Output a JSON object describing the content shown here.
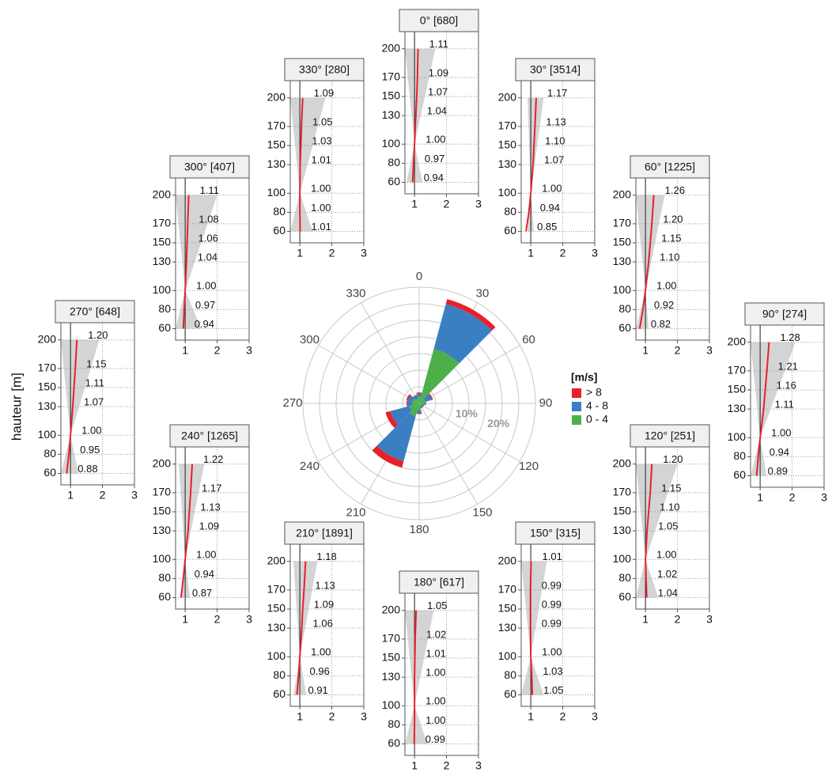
{
  "chart_data": [
    {
      "type": "windrose",
      "categories": [
        "0",
        "30",
        "60",
        "90",
        "120",
        "150",
        "180",
        "210",
        "240",
        "270",
        "300",
        "330"
      ],
      "angles": [
        0,
        30,
        60,
        90,
        120,
        150,
        180,
        210,
        240,
        270,
        300,
        330
      ],
      "legend_title": "[m/s]",
      "series": [
        {
          "name": "> 8",
          "color": "#e8202a",
          "values": [
            0.3,
            1.5,
            0.3,
            0.1,
            0.1,
            0.1,
            0.2,
            2,
            1.5,
            0.3,
            0.5,
            0.2
          ]
        },
        {
          "name": "4 - 8",
          "color": "#3a7fc1",
          "values": [
            1,
            14,
            2,
            0.5,
            0.5,
            0.5,
            1,
            14,
            6,
            1.5,
            1.5,
            1
          ]
        },
        {
          "name": "0 - 4",
          "color": "#4daf4a",
          "values": [
            2,
            17,
            2,
            1.5,
            1,
            1,
            2,
            4,
            3,
            2,
            2,
            1.5
          ]
        }
      ],
      "rlim": [
        0,
        35
      ],
      "rgrid": [
        5,
        10,
        15,
        20,
        25,
        30,
        35
      ],
      "rticks": [
        {
          "value": 10,
          "label": "10%"
        },
        {
          "value": 20,
          "label": "20%"
        }
      ]
    },
    {
      "type": "profile",
      "title": "0° [680]",
      "y": [
        60,
        80,
        100,
        130,
        150,
        170,
        200
      ],
      "values": [
        0.94,
        0.97,
        1,
        1.04,
        1.07,
        1.09,
        1.11
      ],
      "value_labels": [
        "0.94",
        "0.97",
        "1.00",
        "1.04",
        "1.07",
        "1.09",
        "1.11"
      ],
      "band": {
        "y": [
          60,
          100,
          200
        ],
        "low": [
          0.75,
          1,
          0.7
        ],
        "high": [
          1.25,
          1,
          1.65
        ]
      },
      "reference": 1,
      "color": "#e8202a",
      "xlim": [
        0.7,
        3
      ],
      "xticks": [
        1,
        2,
        3
      ],
      "ylim": [
        48,
        218
      ],
      "yticks": [
        60,
        80,
        100,
        130,
        150,
        170,
        200
      ],
      "grid": true
    },
    {
      "type": "profile",
      "title": "30° [3514]",
      "y": [
        60,
        80,
        100,
        130,
        150,
        170,
        200
      ],
      "values": [
        0.85,
        0.94,
        1,
        1.07,
        1.1,
        1.13,
        1.17
      ],
      "value_labels": [
        "0.85",
        "0.94",
        "1.00",
        "1.07",
        "1.10",
        "1.13",
        "1.17"
      ],
      "band": {
        "y": [
          60,
          100,
          200
        ],
        "low": [
          0.9,
          1,
          0.9
        ],
        "high": [
          1.1,
          1,
          1.4
        ]
      },
      "reference": 1,
      "color": "#e8202a",
      "xlim": [
        0.7,
        3
      ],
      "xticks": [
        1,
        2,
        3
      ],
      "ylim": [
        48,
        218
      ],
      "yticks": [
        60,
        80,
        100,
        130,
        150,
        170,
        200
      ],
      "grid": true
    },
    {
      "type": "profile",
      "title": "60° [1225]",
      "y": [
        60,
        80,
        100,
        130,
        150,
        170,
        200
      ],
      "values": [
        0.82,
        0.92,
        1,
        1.1,
        1.15,
        1.2,
        1.26
      ],
      "value_labels": [
        "0.82",
        "0.92",
        "1.00",
        "1.10",
        "1.15",
        "1.20",
        "1.26"
      ],
      "band": {
        "y": [
          60,
          100,
          200
        ],
        "low": [
          0.7,
          1,
          0.7
        ],
        "high": [
          1.1,
          1,
          1.6
        ]
      },
      "reference": 1,
      "color": "#e8202a",
      "xlim": [
        0.7,
        3
      ],
      "xticks": [
        1,
        2,
        3
      ],
      "ylim": [
        48,
        218
      ],
      "yticks": [
        60,
        80,
        100,
        130,
        150,
        170,
        200
      ],
      "grid": true
    },
    {
      "type": "profile",
      "title": "90° [274]",
      "y": [
        60,
        80,
        100,
        130,
        150,
        170,
        200
      ],
      "values": [
        0.89,
        0.94,
        1,
        1.11,
        1.16,
        1.21,
        1.28
      ],
      "value_labels": [
        "0.89",
        "0.94",
        "1.00",
        "1.11",
        "1.16",
        "1.21",
        "1.28"
      ],
      "band": {
        "y": [
          60,
          100,
          200
        ],
        "low": [
          0.7,
          1,
          0.7
        ],
        "high": [
          1.2,
          1,
          2.1
        ]
      },
      "reference": 1,
      "color": "#e8202a",
      "xlim": [
        0.7,
        3
      ],
      "xticks": [
        1,
        2,
        3
      ],
      "ylim": [
        48,
        218
      ],
      "yticks": [
        60,
        80,
        100,
        130,
        150,
        170,
        200
      ],
      "grid": true
    },
    {
      "type": "profile",
      "title": "120° [251]",
      "y": [
        60,
        80,
        100,
        130,
        150,
        170,
        200
      ],
      "values": [
        1.04,
        1.02,
        1,
        1.05,
        1.1,
        1.15,
        1.2
      ],
      "value_labels": [
        "1.04",
        "1.02",
        "1.00",
        "1.05",
        "1.10",
        "1.15",
        "1.20"
      ],
      "band": {
        "y": [
          60,
          100,
          200
        ],
        "low": [
          0.7,
          1,
          0.7
        ],
        "high": [
          1.4,
          1,
          2
        ]
      },
      "reference": 1,
      "color": "#e8202a",
      "xlim": [
        0.7,
        3
      ],
      "xticks": [
        1,
        2,
        3
      ],
      "ylim": [
        48,
        218
      ],
      "yticks": [
        60,
        80,
        100,
        130,
        150,
        170,
        200
      ],
      "grid": true
    },
    {
      "type": "profile",
      "title": "150° [315]",
      "y": [
        60,
        80,
        100,
        130,
        150,
        170,
        200
      ],
      "values": [
        1.05,
        1.03,
        1,
        0.99,
        0.99,
        0.99,
        1.01
      ],
      "value_labels": [
        "1.05",
        "1.03",
        "1.00",
        "0.99",
        "0.99",
        "0.99",
        "1.01"
      ],
      "band": {
        "y": [
          60,
          100,
          200
        ],
        "low": [
          0.7,
          1,
          0.7
        ],
        "high": [
          1.4,
          1,
          1.5
        ]
      },
      "reference": 1,
      "color": "#e8202a",
      "xlim": [
        0.7,
        3
      ],
      "xticks": [
        1,
        2,
        3
      ],
      "ylim": [
        48,
        218
      ],
      "yticks": [
        60,
        80,
        100,
        130,
        150,
        170,
        200
      ],
      "grid": true
    },
    {
      "type": "profile",
      "title": "180° [617]",
      "y": [
        60,
        80,
        100,
        130,
        150,
        170,
        200
      ],
      "values": [
        0.99,
        1,
        1,
        1,
        1.01,
        1.02,
        1.05
      ],
      "value_labels": [
        "0.99",
        "1.00",
        "1.00",
        "1.00",
        "1.01",
        "1.02",
        "1.05"
      ],
      "band": {
        "y": [
          60,
          100,
          200
        ],
        "low": [
          0.7,
          1,
          0.7
        ],
        "high": [
          1.4,
          1,
          1.6
        ]
      },
      "reference": 1,
      "color": "#e8202a",
      "xlim": [
        0.7,
        3
      ],
      "xticks": [
        1,
        2,
        3
      ],
      "ylim": [
        48,
        218
      ],
      "yticks": [
        60,
        80,
        100,
        130,
        150,
        170,
        200
      ],
      "grid": true
    },
    {
      "type": "profile",
      "title": "210° [1891]",
      "y": [
        60,
        80,
        100,
        130,
        150,
        170,
        200
      ],
      "values": [
        0.91,
        0.96,
        1,
        1.06,
        1.09,
        1.13,
        1.18
      ],
      "value_labels": [
        "0.91",
        "0.96",
        "1.00",
        "1.06",
        "1.09",
        "1.13",
        "1.18"
      ],
      "band": {
        "y": [
          60,
          100,
          200
        ],
        "low": [
          0.8,
          1,
          0.8
        ],
        "high": [
          1.2,
          1,
          1.55
        ]
      },
      "reference": 1,
      "color": "#e8202a",
      "xlim": [
        0.7,
        3
      ],
      "xticks": [
        1,
        2,
        3
      ],
      "ylim": [
        48,
        218
      ],
      "yticks": [
        60,
        80,
        100,
        130,
        150,
        170,
        200
      ],
      "grid": true
    },
    {
      "type": "profile",
      "title": "240° [1265]",
      "y": [
        60,
        80,
        100,
        130,
        150,
        170,
        200
      ],
      "values": [
        0.87,
        0.94,
        1,
        1.09,
        1.13,
        1.17,
        1.22
      ],
      "value_labels": [
        "0.87",
        "0.94",
        "1.00",
        "1.09",
        "1.13",
        "1.17",
        "1.22"
      ],
      "band": {
        "y": [
          60,
          100,
          200
        ],
        "low": [
          0.85,
          1,
          0.8
        ],
        "high": [
          1.15,
          1,
          1.6
        ]
      },
      "reference": 1,
      "color": "#e8202a",
      "xlim": [
        0.7,
        3
      ],
      "xticks": [
        1,
        2,
        3
      ],
      "ylim": [
        48,
        218
      ],
      "yticks": [
        60,
        80,
        100,
        130,
        150,
        170,
        200
      ],
      "grid": true
    },
    {
      "type": "profile",
      "title": "270° [648]",
      "ylabel": "hauteur [m]",
      "y": [
        60,
        80,
        100,
        130,
        150,
        170,
        200
      ],
      "values": [
        0.88,
        0.95,
        1,
        1.07,
        1.11,
        1.15,
        1.2
      ],
      "value_labels": [
        "0.88",
        "0.95",
        "1.00",
        "1.07",
        "1.11",
        "1.15",
        "1.20"
      ],
      "band": {
        "y": [
          60,
          100,
          200
        ],
        "low": [
          0.7,
          1,
          0.7
        ],
        "high": [
          1.25,
          1,
          1.9
        ]
      },
      "reference": 1,
      "color": "#e8202a",
      "xlim": [
        0.7,
        3
      ],
      "xticks": [
        1,
        2,
        3
      ],
      "ylim": [
        48,
        218
      ],
      "yticks": [
        60,
        80,
        100,
        130,
        150,
        170,
        200
      ],
      "grid": true
    },
    {
      "type": "profile",
      "title": "300° [407]",
      "y": [
        60,
        80,
        100,
        130,
        150,
        170,
        200
      ],
      "values": [
        0.94,
        0.97,
        1,
        1.04,
        1.06,
        1.08,
        1.11
      ],
      "value_labels": [
        "0.94",
        "0.97",
        "1.00",
        "1.04",
        "1.06",
        "1.08",
        "1.11"
      ],
      "band": {
        "y": [
          60,
          100,
          200
        ],
        "low": [
          0.7,
          1,
          0.7
        ],
        "high": [
          1.5,
          1,
          2
        ]
      },
      "reference": 1,
      "color": "#e8202a",
      "xlim": [
        0.7,
        3
      ],
      "xticks": [
        1,
        2,
        3
      ],
      "ylim": [
        48,
        218
      ],
      "yticks": [
        60,
        80,
        100,
        130,
        150,
        170,
        200
      ],
      "grid": true
    },
    {
      "type": "profile",
      "title": "330° [280]",
      "y": [
        60,
        80,
        100,
        130,
        150,
        170,
        200
      ],
      "values": [
        1.01,
        1,
        1,
        1.01,
        1.03,
        1.05,
        1.09
      ],
      "value_labels": [
        "1.01",
        "1.00",
        "1.00",
        "1.01",
        "1.03",
        "1.05",
        "1.09"
      ],
      "band": {
        "y": [
          60,
          100,
          200
        ],
        "low": [
          0.7,
          1,
          0.7
        ],
        "high": [
          1.4,
          1,
          1.8
        ]
      },
      "reference": 1,
      "color": "#e8202a",
      "xlim": [
        0.7,
        3
      ],
      "xticks": [
        1,
        2,
        3
      ],
      "ylim": [
        48,
        218
      ],
      "yticks": [
        60,
        80,
        100,
        130,
        150,
        170,
        200
      ],
      "grid": true
    }
  ]
}
